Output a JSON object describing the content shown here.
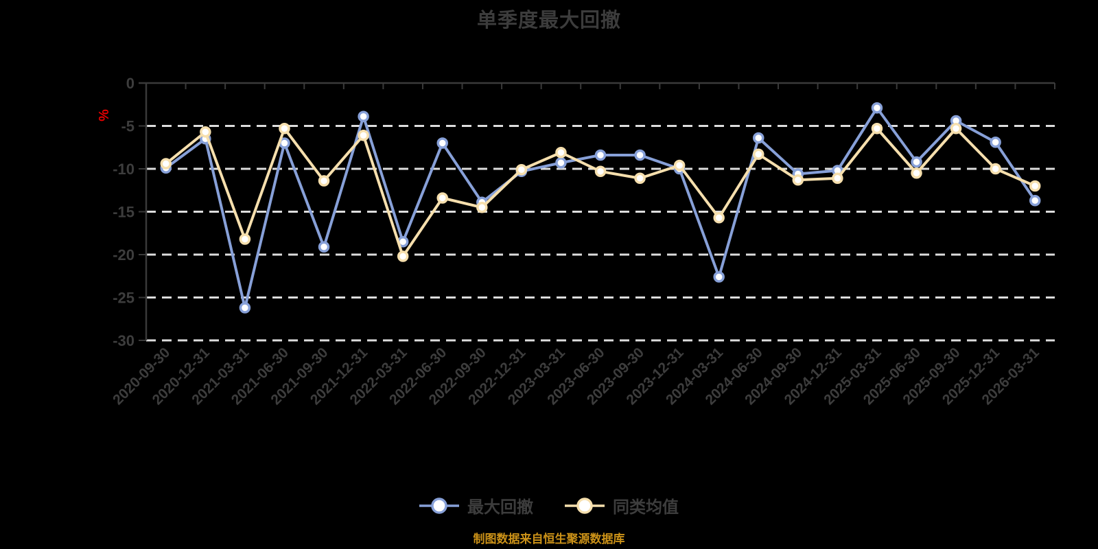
{
  "title": "单季度最大回撤",
  "source_note": "制图数据来自恒生聚源数据库",
  "y_axis": {
    "unit": "%",
    "ticks": [
      0,
      -5,
      -10,
      -15,
      -20,
      -25,
      -30
    ]
  },
  "colors": {
    "background": "#000000",
    "title_text": "#3C3C3C",
    "axis_line": "#3A3A3A",
    "axis_text": "#3D3D3D",
    "gridline": "#DDDDDD",
    "unit_label": "#E60000",
    "source_text": "#CC9218",
    "series_blue": "#87A0D8",
    "series_yellow": "#F6DFAD"
  },
  "chart_data": {
    "type": "line",
    "title": "单季度最大回撤",
    "xlabel": "",
    "ylabel": "%",
    "ylim": [
      -30,
      0
    ],
    "y_ticks": [
      0,
      -5,
      -10,
      -15,
      -20,
      -25,
      -30
    ],
    "grid": true,
    "grid_style": "dashed",
    "legend_position": "bottom",
    "marker": "circle",
    "categories": [
      "2020-09-30",
      "2020-12-31",
      "2021-03-31",
      "2021-06-30",
      "2021-09-30",
      "2021-12-31",
      "2022-03-31",
      "2022-06-30",
      "2022-09-30",
      "2022-12-31",
      "2023-03-31",
      "2023-06-30",
      "2023-09-30",
      "2023-12-31",
      "2024-03-31",
      "2024-06-30",
      "2024-09-30",
      "2024-12-31",
      "2025-03-31",
      "2025-06-30",
      "2025-09-30",
      "2025-12-31",
      "2026-03-31"
    ],
    "series": [
      {
        "name": "最大回撤",
        "color": "#87A0D8",
        "values": [
          -9.9,
          -6.5,
          -26.2,
          -7.0,
          -19.1,
          -3.9,
          -18.5,
          -7.0,
          -13.9,
          -10.3,
          -9.3,
          -8.4,
          -8.4,
          -10.0,
          -22.6,
          -6.4,
          -10.6,
          -10.2,
          -2.9,
          -9.2,
          -4.4,
          -6.9,
          -13.7
        ]
      },
      {
        "name": "同类均值",
        "color": "#F6DFAD",
        "values": [
          -9.4,
          -5.7,
          -18.2,
          -5.3,
          -11.4,
          -6.1,
          -20.2,
          -13.4,
          -14.5,
          -10.1,
          -8.1,
          -10.3,
          -11.1,
          -9.6,
          -15.7,
          -8.3,
          -11.3,
          -11.1,
          -5.3,
          -10.5,
          -5.3,
          -10.0,
          -12.0
        ]
      }
    ]
  }
}
